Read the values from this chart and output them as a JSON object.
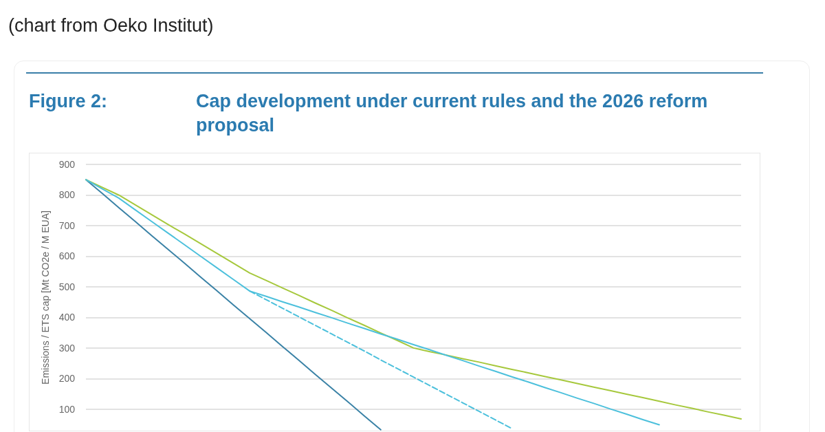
{
  "chart_data": {
    "type": "line",
    "title": "Cap development under current rules and the 2026 reform proposal",
    "annotations": [
      "(chart from Oeko Institut)",
      "Figure 2:"
    ],
    "ylabel": "Emissions / ETS cap [Mt CO2e / M EUA]",
    "categories": [
      null,
      null,
      null,
      null,
      null,
      null,
      null,
      null,
      null,
      null,
      null,
      null,
      null,
      null,
      null,
      null,
      null,
      null,
      null,
      null,
      null,
      null,
      null,
      null,
      null,
      null,
      null,
      null,
      null,
      null,
      null,
      null,
      null,
      null,
      null,
      null,
      null,
      null,
      null,
      null,
      null
    ],
    "series": [
      {
        "color": "#3a82a6",
        "values": [
          850,
          805,
          759,
          714,
          668,
          623,
          578,
          532,
          487,
          441,
          396,
          351,
          305,
          260,
          214,
          169,
          124,
          78,
          33,
          null,
          null,
          null,
          null,
          null,
          null,
          null,
          null,
          null,
          null,
          null,
          null,
          null,
          null,
          null,
          null,
          null,
          null,
          null,
          null,
          null,
          null
        ]
      },
      {
        "color": "#a6c83c",
        "values": [
          850,
          825,
          800,
          768,
          736,
          704,
          673,
          641,
          609,
          577,
          545,
          521,
          496,
          472,
          447,
          423,
          398,
          374,
          349,
          325,
          300,
          288,
          277,
          265,
          254,
          242,
          230,
          219,
          207,
          196,
          184,
          172,
          161,
          149,
          138,
          126,
          114,
          103,
          91,
          80,
          68
        ]
      },
      {
        "color": "#4cc0dc",
        "values": [
          850,
          820,
          790,
          752,
          714,
          676,
          638,
          600,
          562,
          524,
          486,
          469,
          451,
          434,
          416,
          399,
          381,
          364,
          346,
          329,
          311,
          294,
          276,
          259,
          241,
          224,
          206,
          189,
          171,
          154,
          136,
          119,
          101,
          84,
          66,
          49,
          null,
          null,
          null,
          null,
          null
        ]
      },
      {
        "color": "#4cc0dc",
        "line_style": "dashed",
        "values": [
          null,
          null,
          null,
          null,
          null,
          null,
          null,
          null,
          null,
          null,
          486,
          458,
          430,
          402,
          374,
          346,
          318,
          290,
          261,
          233,
          205,
          177,
          149,
          121,
          93,
          65,
          37,
          null,
          null,
          null,
          null,
          null,
          null,
          null,
          null,
          null,
          null,
          null,
          null,
          null,
          null
        ]
      }
    ],
    "ylim": [
      30,
      900
    ],
    "yticks": [
      100,
      200,
      300,
      400,
      500,
      600,
      700,
      800,
      900
    ],
    "grid": "y",
    "tick_labels": "y",
    "marker": "none",
    "line_style": "solid"
  }
}
